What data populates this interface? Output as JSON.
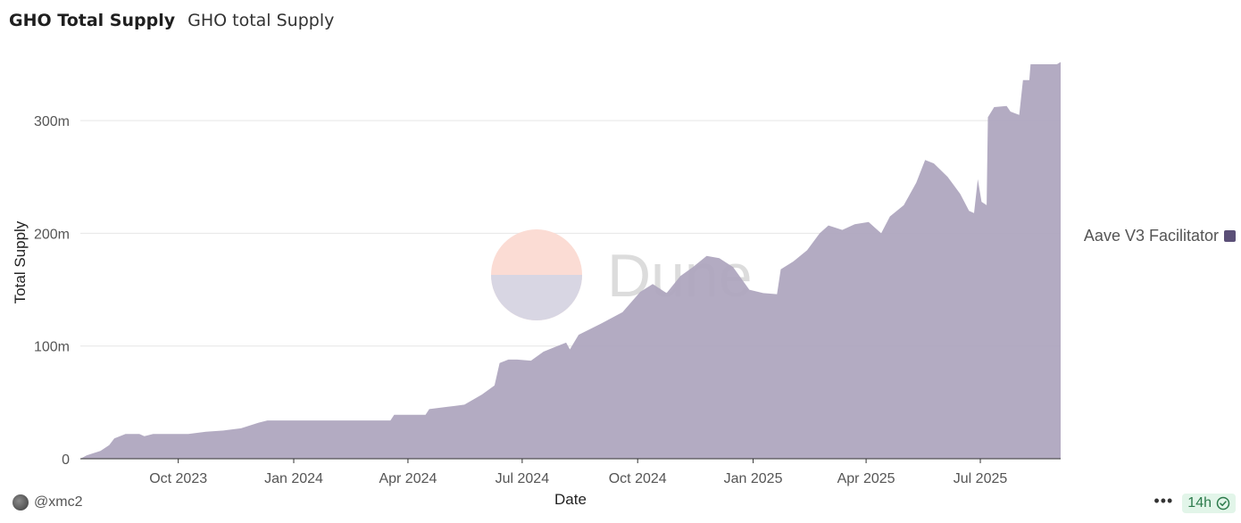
{
  "header": {
    "title": "GHO Total Supply",
    "subtitle": "GHO total Supply"
  },
  "footer": {
    "author": "@xmc2",
    "age": "14h",
    "more_label": "•••"
  },
  "watermark": {
    "text": "Dune"
  },
  "colors": {
    "series": "#ada5bd",
    "legend": "#5b4f77",
    "grid": "#e6e6e6",
    "axis": "#333333",
    "badge_bg": "#e2f5e9",
    "badge_fg": "#2c7a4b"
  },
  "chart_data": {
    "type": "area",
    "xlabel": "Date",
    "ylabel": "Total Supply",
    "ylim": [
      0,
      350000000
    ],
    "yticks": [
      {
        "value": 0,
        "label": "0"
      },
      {
        "value": 100000000,
        "label": "100m"
      },
      {
        "value": 200000000,
        "label": "200m"
      },
      {
        "value": 300000000,
        "label": "300m"
      }
    ],
    "xlim": [
      "2023-07-15",
      "2025-09-03"
    ],
    "xticks": [
      {
        "date": "2023-10-01",
        "label": "Oct 2023"
      },
      {
        "date": "2024-01-01",
        "label": "Jan 2024"
      },
      {
        "date": "2024-04-01",
        "label": "Apr 2024"
      },
      {
        "date": "2024-07-01",
        "label": "Jul 2024"
      },
      {
        "date": "2024-10-01",
        "label": "Oct 2024"
      },
      {
        "date": "2025-01-01",
        "label": "Jan 2025"
      },
      {
        "date": "2025-04-01",
        "label": "Apr 2025"
      },
      {
        "date": "2025-07-01",
        "label": "Jul 2025"
      }
    ],
    "legend": {
      "position": "right"
    },
    "grid": true,
    "series": [
      {
        "name": "Aave V3 Facilitator",
        "points": [
          [
            "2023-07-15",
            0
          ],
          [
            "2023-07-20",
            3000000
          ],
          [
            "2023-07-31",
            7000000
          ],
          [
            "2023-08-07",
            12000000
          ],
          [
            "2023-08-11",
            18000000
          ],
          [
            "2023-08-20",
            22000000
          ],
          [
            "2023-08-31",
            22000000
          ],
          [
            "2023-09-04",
            20000000
          ],
          [
            "2023-09-11",
            22000000
          ],
          [
            "2023-09-24",
            22000000
          ],
          [
            "2023-10-09",
            22000000
          ],
          [
            "2023-10-23",
            24000000
          ],
          [
            "2023-11-06",
            25000000
          ],
          [
            "2023-11-20",
            27000000
          ],
          [
            "2023-12-04",
            32000000
          ],
          [
            "2023-12-11",
            34000000
          ],
          [
            "2023-12-25",
            34000000
          ],
          [
            "2024-02-19",
            34000000
          ],
          [
            "2024-03-18",
            34000000
          ],
          [
            "2024-03-21",
            39000000
          ],
          [
            "2024-04-15",
            39000000
          ],
          [
            "2024-04-18",
            44000000
          ],
          [
            "2024-05-02",
            46000000
          ],
          [
            "2024-05-16",
            48000000
          ],
          [
            "2024-05-30",
            57000000
          ],
          [
            "2024-06-09",
            65000000
          ],
          [
            "2024-06-13",
            85000000
          ],
          [
            "2024-06-20",
            88000000
          ],
          [
            "2024-06-27",
            88000000
          ],
          [
            "2024-07-08",
            87000000
          ],
          [
            "2024-07-18",
            95000000
          ],
          [
            "2024-07-29",
            100000000
          ],
          [
            "2024-08-05",
            103000000
          ],
          [
            "2024-08-08",
            97000000
          ],
          [
            "2024-08-15",
            110000000
          ],
          [
            "2024-09-02",
            120000000
          ],
          [
            "2024-09-19",
            130000000
          ],
          [
            "2024-10-03",
            148000000
          ],
          [
            "2024-10-13",
            155000000
          ],
          [
            "2024-10-24",
            147000000
          ],
          [
            "2024-11-04",
            162000000
          ],
          [
            "2024-11-14",
            170000000
          ],
          [
            "2024-11-25",
            180000000
          ],
          [
            "2024-12-05",
            178000000
          ],
          [
            "2024-12-16",
            170000000
          ],
          [
            "2024-12-29",
            150000000
          ],
          [
            "2025-01-09",
            147000000
          ],
          [
            "2025-01-20",
            146000000
          ],
          [
            "2025-01-23",
            168000000
          ],
          [
            "2025-02-02",
            175000000
          ],
          [
            "2025-02-13",
            185000000
          ],
          [
            "2025-02-23",
            200000000
          ],
          [
            "2025-03-02",
            207000000
          ],
          [
            "2025-03-13",
            203000000
          ],
          [
            "2025-03-23",
            208000000
          ],
          [
            "2025-04-03",
            210000000
          ],
          [
            "2025-04-13",
            200000000
          ],
          [
            "2025-04-20",
            215000000
          ],
          [
            "2025-05-01",
            225000000
          ],
          [
            "2025-05-11",
            245000000
          ],
          [
            "2025-05-18",
            265000000
          ],
          [
            "2025-05-25",
            262000000
          ],
          [
            "2025-06-05",
            250000000
          ],
          [
            "2025-06-15",
            235000000
          ],
          [
            "2025-06-22",
            220000000
          ],
          [
            "2025-06-26",
            218000000
          ],
          [
            "2025-06-29",
            248000000
          ],
          [
            "2025-07-02",
            228000000
          ],
          [
            "2025-07-06",
            225000000
          ],
          [
            "2025-07-07",
            303000000
          ],
          [
            "2025-07-12",
            312000000
          ],
          [
            "2025-07-22",
            313000000
          ],
          [
            "2025-07-25",
            308000000
          ],
          [
            "2025-08-01",
            305000000
          ],
          [
            "2025-08-04",
            336000000
          ],
          [
            "2025-08-09",
            336000000
          ],
          [
            "2025-08-10",
            350000000
          ],
          [
            "2025-08-31",
            350000000
          ],
          [
            "2025-09-03",
            352000000
          ]
        ]
      }
    ]
  }
}
